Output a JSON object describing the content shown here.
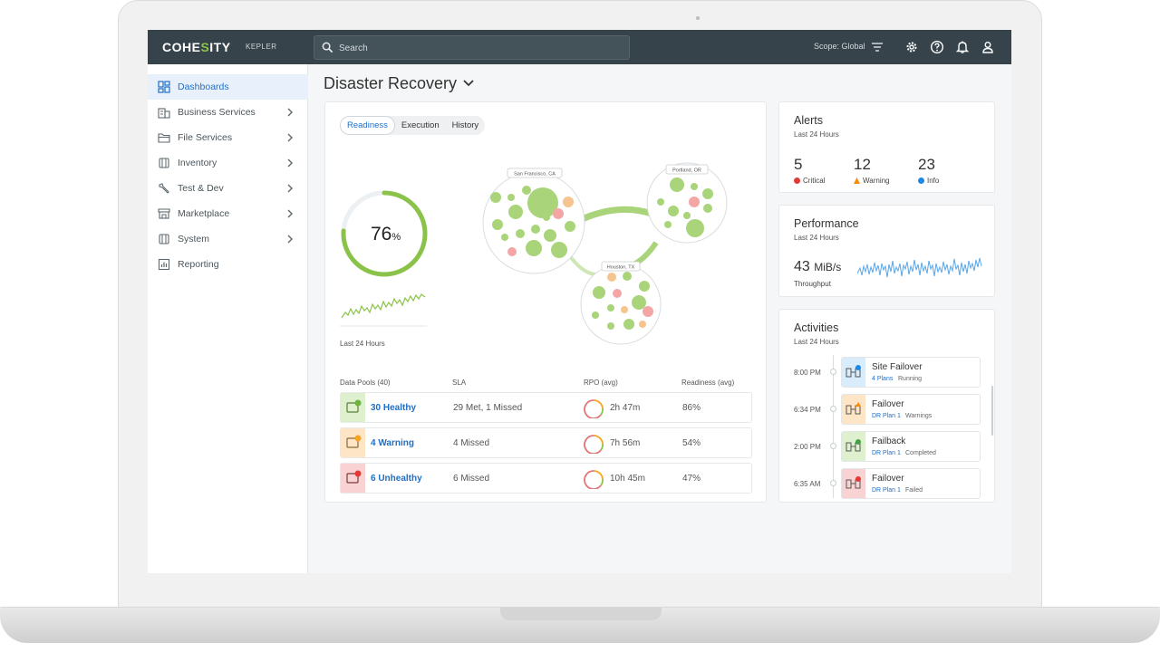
{
  "app": {
    "logo_prefix": "COHE",
    "logo_accent": "S",
    "logo_suffix": "ITY",
    "product": "KEPLER"
  },
  "topbar": {
    "search_placeholder": "Search",
    "scope": "Scope: Global"
  },
  "sidebar": {
    "items": [
      {
        "label": "Dashboards",
        "active": true,
        "has_submenu": false,
        "icon": "dashboard-icon"
      },
      {
        "label": "Business Services",
        "has_submenu": true,
        "icon": "building-icon"
      },
      {
        "label": "File Services",
        "has_submenu": true,
        "icon": "folder-icon"
      },
      {
        "label": "Inventory",
        "has_submenu": true,
        "icon": "cube-icon"
      },
      {
        "label": "Test & Dev",
        "has_submenu": true,
        "icon": "wrench-icon"
      },
      {
        "label": "Marketplace",
        "has_submenu": true,
        "icon": "store-icon"
      },
      {
        "label": "System",
        "has_submenu": true,
        "icon": "cube-icon"
      },
      {
        "label": "Reporting",
        "has_submenu": false,
        "icon": "report-icon"
      }
    ]
  },
  "page": {
    "title": "Disaster Recovery"
  },
  "readiness": {
    "tabs": [
      "Readiness",
      "Execution",
      "History"
    ],
    "active_tab": "Readiness",
    "percent": 76,
    "percent_value": "76",
    "percent_unit": "%",
    "period": "Last 24 Hours",
    "sites": [
      "San Francisco, CA",
      "Portland, OR",
      "Houston, TX"
    ]
  },
  "pools_table": {
    "headers": [
      "Data Pools (40)",
      "SLA",
      "RPO (avg)",
      "Readiness (avg)"
    ],
    "rows": [
      {
        "pool": "30 Healthy",
        "sla": "29 Met, 1 Missed",
        "rpo": "2h 47m",
        "readiness": "86%",
        "status": "healthy"
      },
      {
        "pool": "4 Warning",
        "sla": "4 Missed",
        "rpo": "7h 56m",
        "readiness": "54%",
        "status": "warning"
      },
      {
        "pool": "6 Unhealthy",
        "sla": "6 Missed",
        "rpo": "10h 45m",
        "readiness": "47%",
        "status": "unhealthy"
      }
    ]
  },
  "alerts": {
    "title": "Alerts",
    "period": "Last 24 Hours",
    "items": [
      {
        "count": "5",
        "label": "Critical",
        "color": "#e53935"
      },
      {
        "count": "12",
        "label": "Warning",
        "color": "#fb8c00"
      },
      {
        "count": "23",
        "label": "Info",
        "color": "#1e88e5"
      }
    ]
  },
  "performance": {
    "title": "Performance",
    "period": "Last 24 Hours",
    "value": "43",
    "unit": "MiB/s",
    "label": "Throughput"
  },
  "activities": {
    "title": "Activities",
    "period": "Last 24 Hours",
    "items": [
      {
        "time": "8:00 PM",
        "name": "Site Failover",
        "plan": "4 Plans",
        "status": "Running",
        "state": "running"
      },
      {
        "time": "6:34 PM",
        "name": "Failover",
        "plan": "DR Plan 1",
        "status": "Warnings",
        "state": "warning"
      },
      {
        "time": "2:00 PM",
        "name": "Failback",
        "plan": "DR Plan 1",
        "status": "Completed",
        "state": "completed"
      },
      {
        "time": "6:35 AM",
        "name": "Failover",
        "plan": "DR Plan 1",
        "status": "Failed",
        "state": "failed"
      }
    ]
  },
  "colors": {
    "accent": "#1f6fc6",
    "healthy": "#8bc34a",
    "warning": "#f5a623",
    "critical": "#e57373",
    "topbar": "#36434a"
  }
}
